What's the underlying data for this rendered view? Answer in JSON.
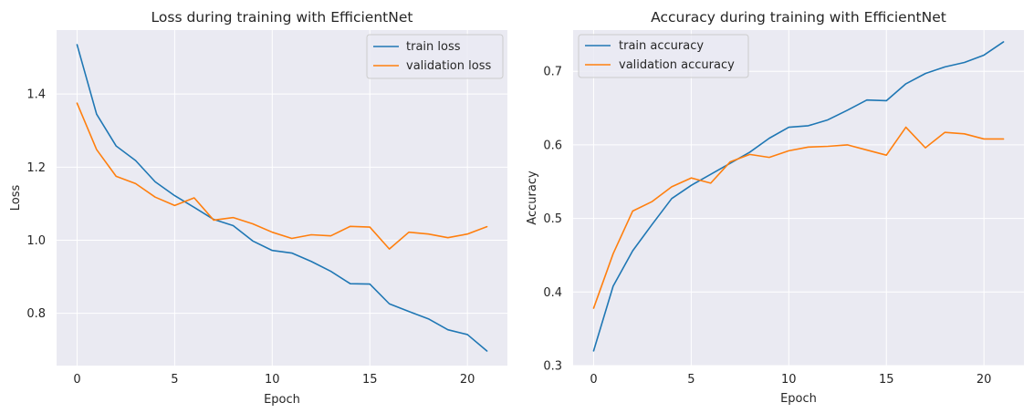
{
  "chart_data": [
    {
      "type": "line",
      "title": "Loss during training with EfficientNet",
      "xlabel": "Epoch",
      "ylabel": "Loss",
      "xlim": [
        -1.05,
        22.05
      ],
      "ylim": [
        0.657,
        1.575
      ],
      "xticks": [
        0,
        5,
        10,
        15,
        20
      ],
      "yticks": [
        0.8,
        1.0,
        1.2,
        1.4
      ],
      "ytick_labels": [
        "0.8",
        "1.0",
        "1.2",
        "1.4"
      ],
      "grid": true,
      "legend": "top-right",
      "x": [
        0,
        1,
        2,
        3,
        4,
        5,
        6,
        7,
        8,
        9,
        10,
        11,
        12,
        13,
        14,
        15,
        16,
        17,
        18,
        19,
        20,
        21
      ],
      "series": [
        {
          "name": "train loss",
          "color": "#1f77b4",
          "values": [
            1.535,
            1.345,
            1.258,
            1.218,
            1.16,
            1.122,
            1.09,
            1.057,
            1.04,
            0.998,
            0.972,
            0.965,
            0.942,
            0.915,
            0.881,
            0.88,
            0.826,
            0.805,
            0.785,
            0.755,
            0.742,
            0.697
          ]
        },
        {
          "name": "validation loss",
          "color": "#ff7f0e",
          "values": [
            1.375,
            1.248,
            1.175,
            1.155,
            1.118,
            1.095,
            1.116,
            1.055,
            1.062,
            1.045,
            1.022,
            1.005,
            1.015,
            1.012,
            1.038,
            1.036,
            0.976,
            1.022,
            1.017,
            1.007,
            1.017,
            1.037
          ]
        }
      ]
    },
    {
      "type": "line",
      "title": "Accuracy during training with EfficientNet",
      "xlabel": "Epoch",
      "ylabel": "Accuracy",
      "xlim": [
        -1.05,
        22.05
      ],
      "ylim": [
        0.3,
        0.756
      ],
      "xticks": [
        0,
        5,
        10,
        15,
        20
      ],
      "yticks": [
        0.3,
        0.4,
        0.5,
        0.6,
        0.7
      ],
      "ytick_labels": [
        "0.3",
        "0.4",
        "0.5",
        "0.6",
        "0.7"
      ],
      "grid": true,
      "legend": "top-left",
      "x": [
        0,
        1,
        2,
        3,
        4,
        5,
        6,
        7,
        8,
        9,
        10,
        11,
        12,
        13,
        14,
        15,
        16,
        17,
        18,
        19,
        20,
        21
      ],
      "series": [
        {
          "name": "train accuracy",
          "color": "#1f77b4",
          "values": [
            0.32,
            0.408,
            0.456,
            0.492,
            0.527,
            0.545,
            0.56,
            0.575,
            0.59,
            0.609,
            0.624,
            0.626,
            0.634,
            0.647,
            0.661,
            0.66,
            0.683,
            0.697,
            0.706,
            0.712,
            0.722,
            0.74
          ]
        },
        {
          "name": "validation accuracy",
          "color": "#ff7f0e",
          "values": [
            0.378,
            0.452,
            0.51,
            0.523,
            0.543,
            0.555,
            0.548,
            0.577,
            0.587,
            0.583,
            0.592,
            0.597,
            0.598,
            0.6,
            0.593,
            0.586,
            0.624,
            0.596,
            0.617,
            0.615,
            0.608,
            0.608
          ]
        }
      ]
    }
  ]
}
